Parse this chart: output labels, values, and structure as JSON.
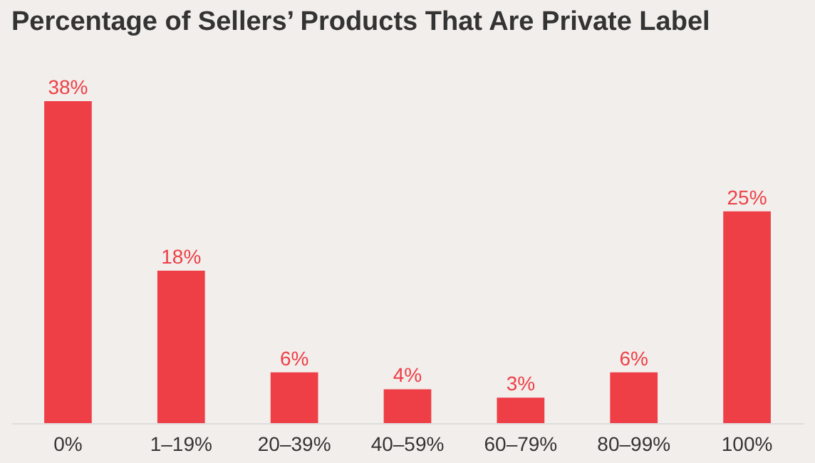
{
  "chart_data": {
    "type": "bar",
    "title": "Percentage of Sellers’ Products That Are Private Label",
    "categories": [
      "0%",
      "1–19%",
      "20–39%",
      "40–59%",
      "60–79%",
      "80–99%",
      "100%"
    ],
    "values": [
      38,
      18,
      6,
      4,
      3,
      6,
      25
    ],
    "value_labels": [
      "38%",
      "18%",
      "6%",
      "4%",
      "3%",
      "6%",
      "25%"
    ],
    "color": "#ee3e46"
  }
}
